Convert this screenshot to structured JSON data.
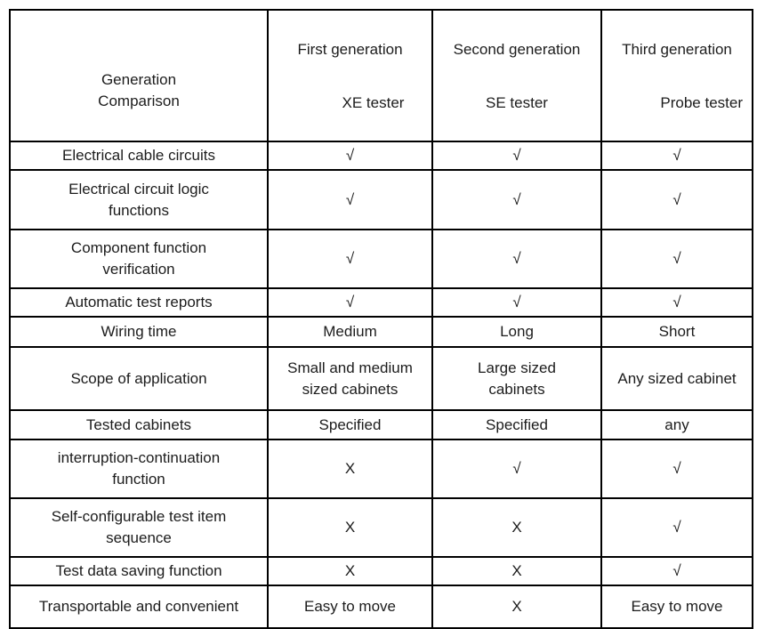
{
  "page": {
    "background_color": "#ffffff",
    "border_color": "#000000",
    "text_color": "#1c1c1c"
  },
  "table": {
    "header": {
      "corner": {
        "line1": "Generation",
        "line2": "Comparison"
      },
      "columns": [
        {
          "line1": "First generation",
          "line2": "XE tester"
        },
        {
          "line1": "Second generation",
          "line2": "SE tester"
        },
        {
          "line1": "Third generation",
          "line2": "Probe tester"
        }
      ]
    },
    "symbols": {
      "check": "√",
      "cross": "X"
    },
    "rows": [
      {
        "label": "Electrical cable circuits",
        "cells": [
          "√",
          "√",
          "√"
        ]
      },
      {
        "label": "Electrical circuit logic\nfunctions",
        "cells": [
          "√",
          "√",
          "√"
        ]
      },
      {
        "label": "Component function\nverification",
        "cells": [
          "√",
          "√",
          "√"
        ]
      },
      {
        "label": "Automatic test reports",
        "cells": [
          "√",
          "√",
          "√"
        ]
      },
      {
        "label": "Wiring time",
        "cells": [
          "Medium",
          "Long",
          "Short"
        ]
      },
      {
        "label": "Scope of application",
        "cells": [
          "Small and medium\nsized cabinets",
          "Large sized\ncabinets",
          "Any sized cabinet"
        ]
      },
      {
        "label": "Tested cabinets",
        "cells": [
          "Specified",
          "Specified",
          "any"
        ]
      },
      {
        "label": "interruption-continuation\nfunction",
        "cells": [
          "X",
          "√",
          "√"
        ]
      },
      {
        "label": "Self-configurable test item\nsequence",
        "cells": [
          "X",
          "X",
          "√"
        ]
      },
      {
        "label": "Test data saving function",
        "cells": [
          "X",
          "X",
          "√"
        ]
      },
      {
        "label": "Transportable and convenient",
        "cells": [
          "Easy to move",
          "X",
          "Easy to move"
        ]
      }
    ]
  }
}
